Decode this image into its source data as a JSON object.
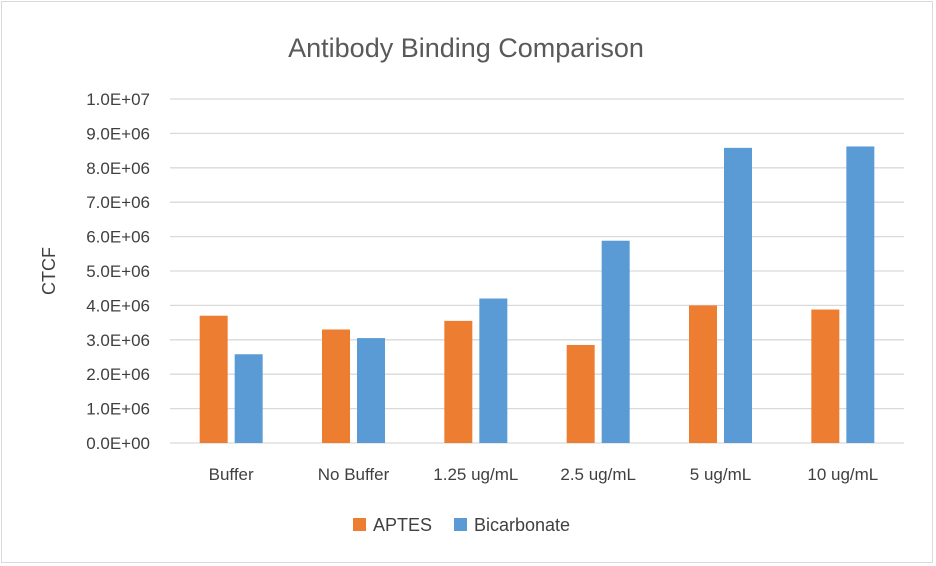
{
  "chart_data": {
    "type": "bar",
    "title": "Antibody Binding Comparison",
    "xlabel": "",
    "ylabel": "CTCF",
    "categories": [
      "Buffer",
      "No Buffer",
      "1.25 ug/mL",
      "2.5 ug/mL",
      "5 ug/mL",
      "10 ug/mL"
    ],
    "series": [
      {
        "name": "APTES",
        "color": "#ED7D31",
        "values": [
          3700000,
          3300000,
          3550000,
          2850000,
          4000000,
          3880000
        ]
      },
      {
        "name": "Bicarbonate",
        "color": "#5B9BD5",
        "values": [
          2580000,
          3050000,
          4200000,
          5880000,
          8580000,
          8620000
        ]
      }
    ],
    "ylim": [
      0,
      10000000
    ],
    "yticks": [
      0,
      1000000,
      2000000,
      3000000,
      4000000,
      5000000,
      6000000,
      7000000,
      8000000,
      9000000,
      10000000
    ],
    "ytick_labels": [
      "0.0E+00",
      "1.0E+06",
      "2.0E+06",
      "3.0E+06",
      "4.0E+06",
      "5.0E+06",
      "6.0E+06",
      "7.0E+06",
      "8.0E+06",
      "9.0E+06",
      "1.0E+07"
    ],
    "grid": true,
    "legend": "bottom",
    "gridline_color": "#d9d9d9"
  }
}
